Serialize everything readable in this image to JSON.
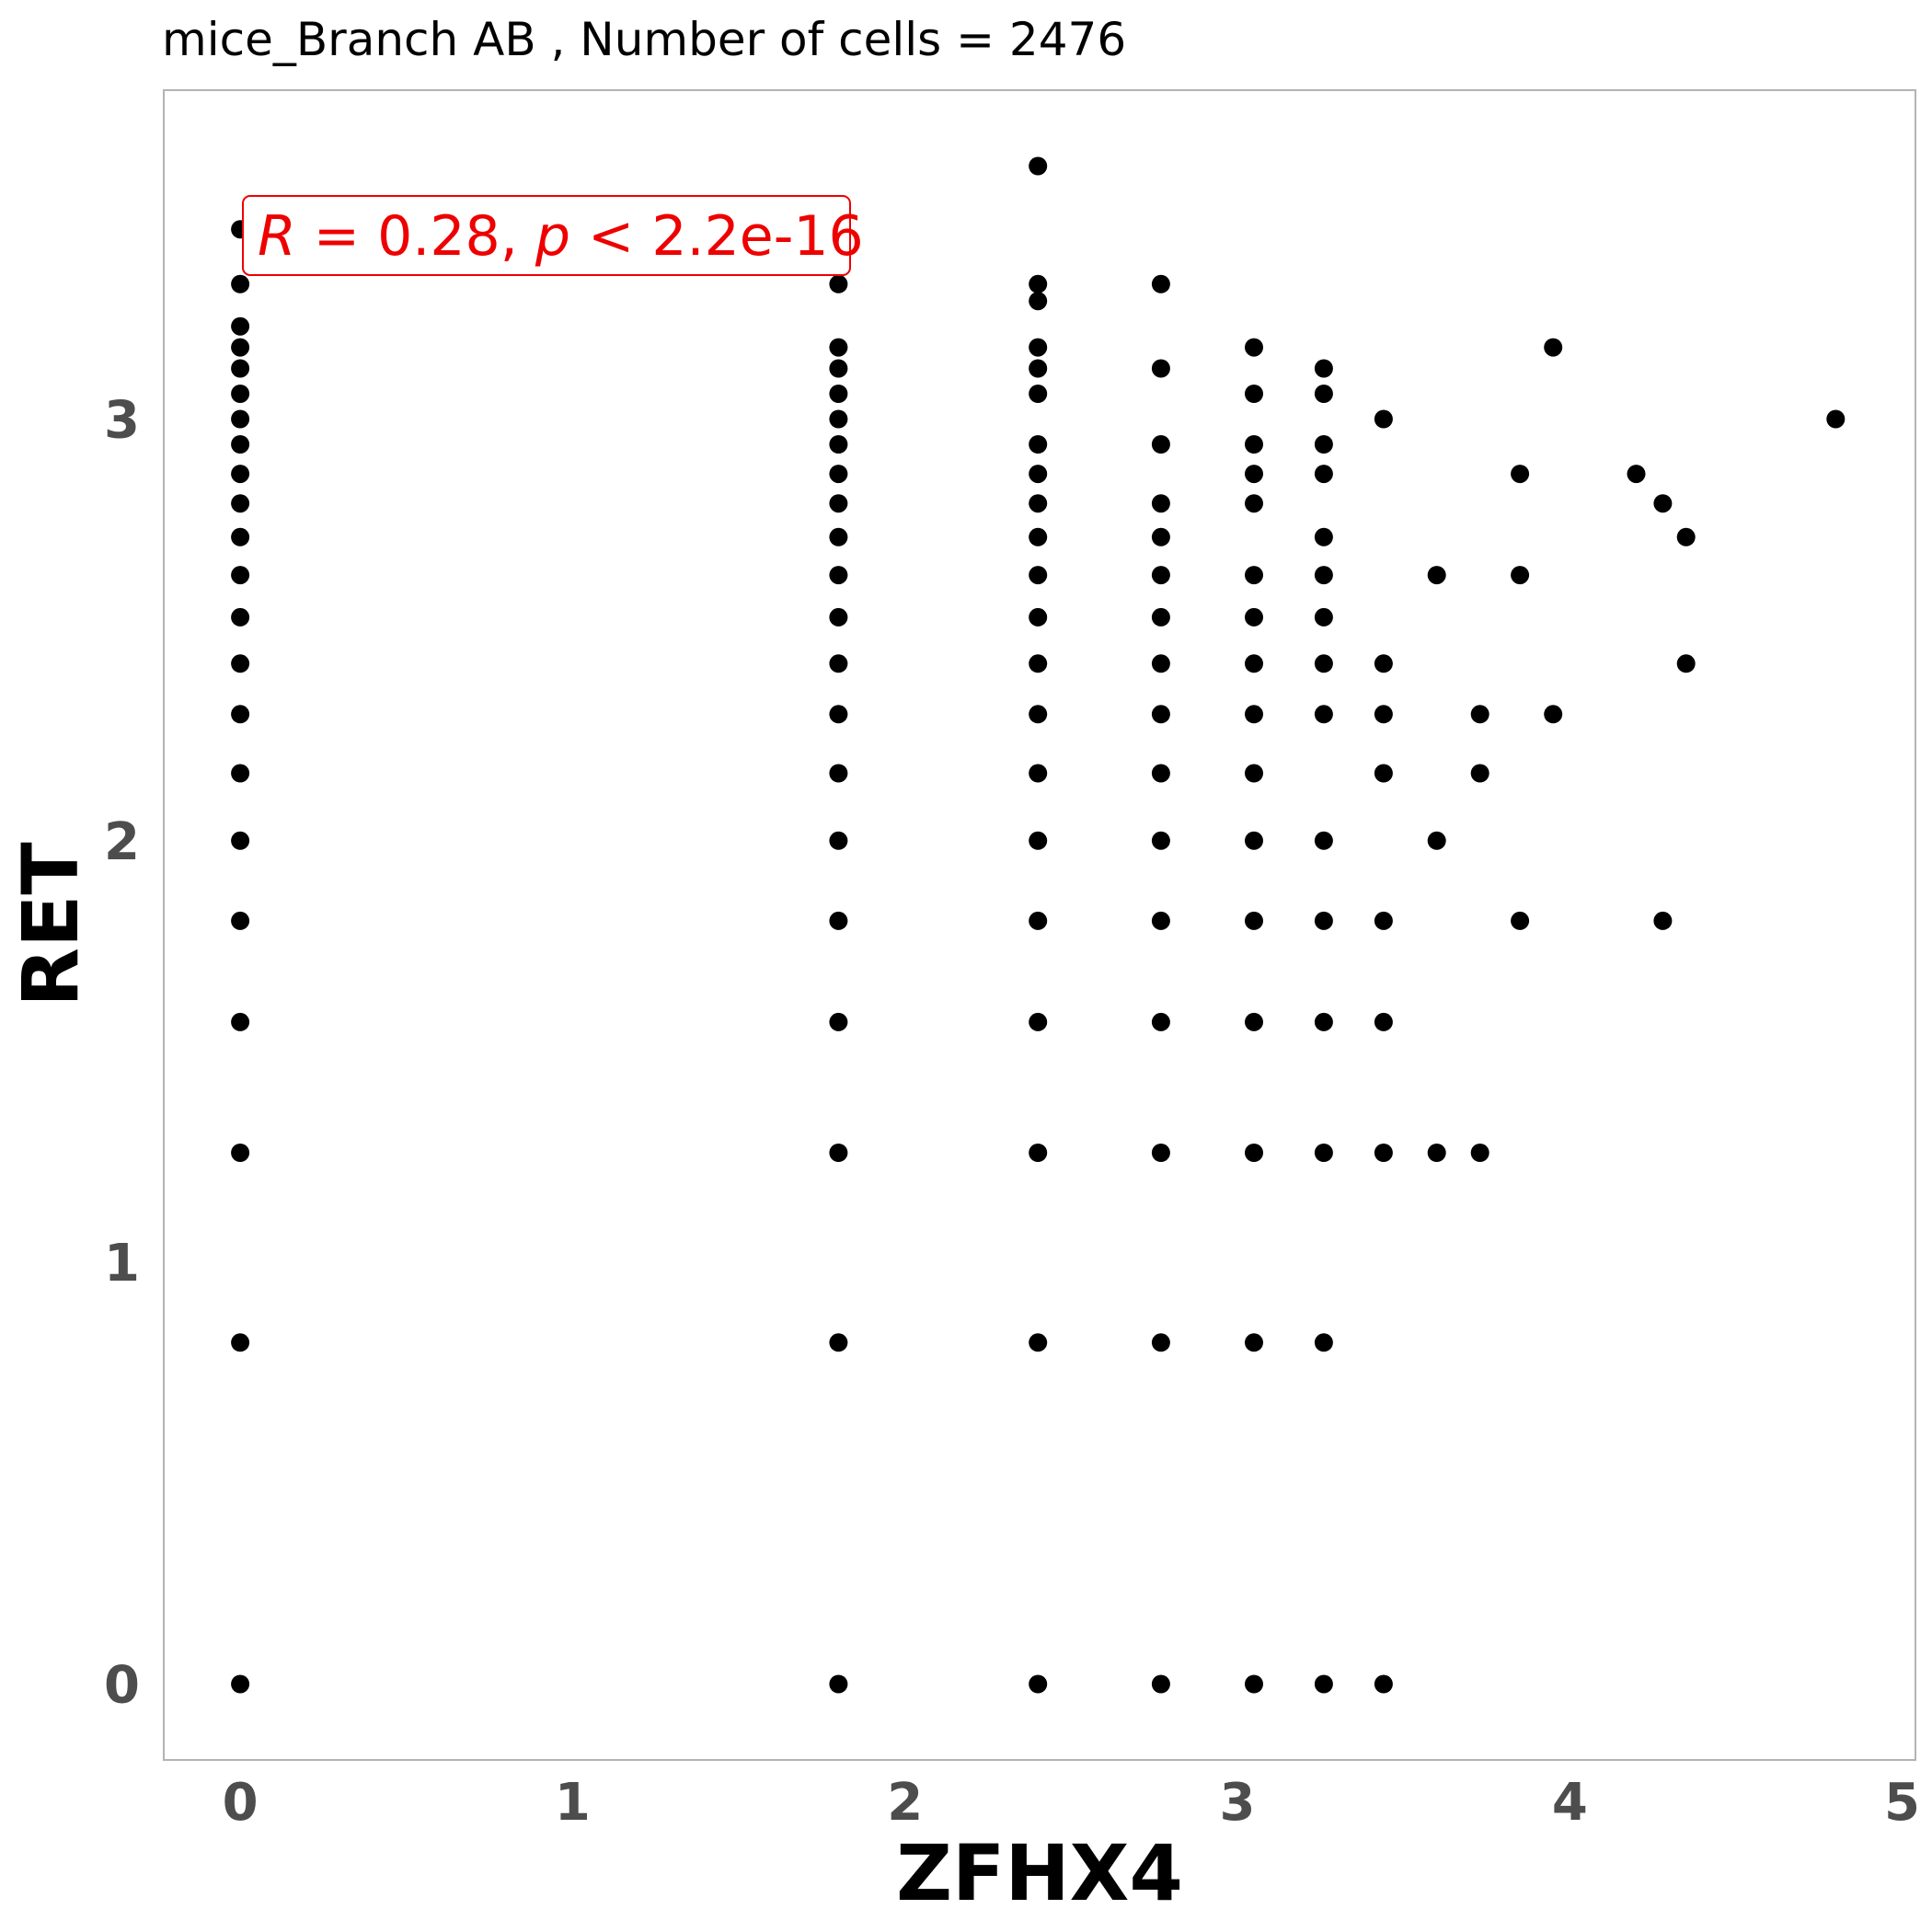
{
  "chart_data": {
    "type": "scatter",
    "title": "mice_Branch AB , Number of cells =  2476",
    "xlabel": "ZFHX4",
    "ylabel": "RET",
    "xlim": [
      -0.23,
      5.04
    ],
    "ylim": [
      -0.18,
      3.78
    ],
    "xticks": [
      0,
      1,
      2,
      3,
      4,
      5
    ],
    "yticks": [
      0,
      1,
      2,
      3
    ],
    "grid": false,
    "legend": "none",
    "annotation": {
      "r_symbol": "R",
      "r_value": " = 0.28, ",
      "p_symbol": "p",
      "p_value": " < 2.2e-16",
      "color": "#ee0000"
    },
    "point_color": "#000000",
    "columns": [
      {
        "x": 0.0,
        "y": [
          0,
          0.81,
          1.26,
          1.57,
          1.81,
          2.0,
          2.16,
          2.3,
          2.42,
          2.53,
          2.63,
          2.72,
          2.8,
          2.87,
          2.94,
          3.0,
          3.06,
          3.12,
          3.17,
          3.22,
          3.32,
          3.45
        ]
      },
      {
        "x": 1.8,
        "y": [
          0,
          0.81,
          1.26,
          1.57,
          1.81,
          2.0,
          2.16,
          2.3,
          2.42,
          2.53,
          2.63,
          2.72,
          2.8,
          2.87,
          2.94,
          3.0,
          3.06,
          3.12,
          3.17,
          3.32
        ]
      },
      {
        "x": 2.4,
        "y": [
          0,
          0.81,
          1.26,
          1.57,
          1.81,
          2.0,
          2.16,
          2.3,
          2.42,
          2.53,
          2.63,
          2.72,
          2.8,
          2.87,
          2.94,
          3.06,
          3.12,
          3.17,
          3.28,
          3.32,
          3.6
        ]
      },
      {
        "x": 2.77,
        "y": [
          0,
          0.81,
          1.26,
          1.57,
          1.81,
          2.0,
          2.16,
          2.3,
          2.42,
          2.53,
          2.63,
          2.72,
          2.8,
          2.94,
          3.12,
          3.32
        ]
      },
      {
        "x": 3.05,
        "y": [
          0,
          0.81,
          1.26,
          1.57,
          1.81,
          2.0,
          2.16,
          2.3,
          2.42,
          2.53,
          2.63,
          2.8,
          2.87,
          2.94,
          3.06,
          3.17
        ]
      },
      {
        "x": 3.26,
        "y": [
          0,
          0.81,
          1.26,
          1.57,
          1.81,
          2.0,
          2.3,
          2.42,
          2.53,
          2.63,
          2.72,
          2.87,
          2.94,
          3.06,
          3.12
        ]
      },
      {
        "x": 3.44,
        "y": [
          0,
          1.26,
          1.57,
          1.81,
          2.16,
          2.3,
          2.42,
          3.0
        ]
      },
      {
        "x": 3.6,
        "y": [
          1.26,
          2.0,
          2.63
        ]
      },
      {
        "x": 3.73,
        "y": [
          1.26,
          2.16,
          2.3
        ]
      },
      {
        "x": 3.85,
        "y": [
          1.81,
          2.63,
          2.87
        ]
      },
      {
        "x": 3.95,
        "y": [
          2.3,
          3.17
        ]
      },
      {
        "x": 4.2,
        "y": [
          2.87
        ]
      },
      {
        "x": 4.28,
        "y": [
          1.81,
          2.8
        ]
      },
      {
        "x": 4.35,
        "y": [
          2.42,
          2.72
        ]
      },
      {
        "x": 4.8,
        "y": [
          3.0
        ]
      }
    ]
  }
}
